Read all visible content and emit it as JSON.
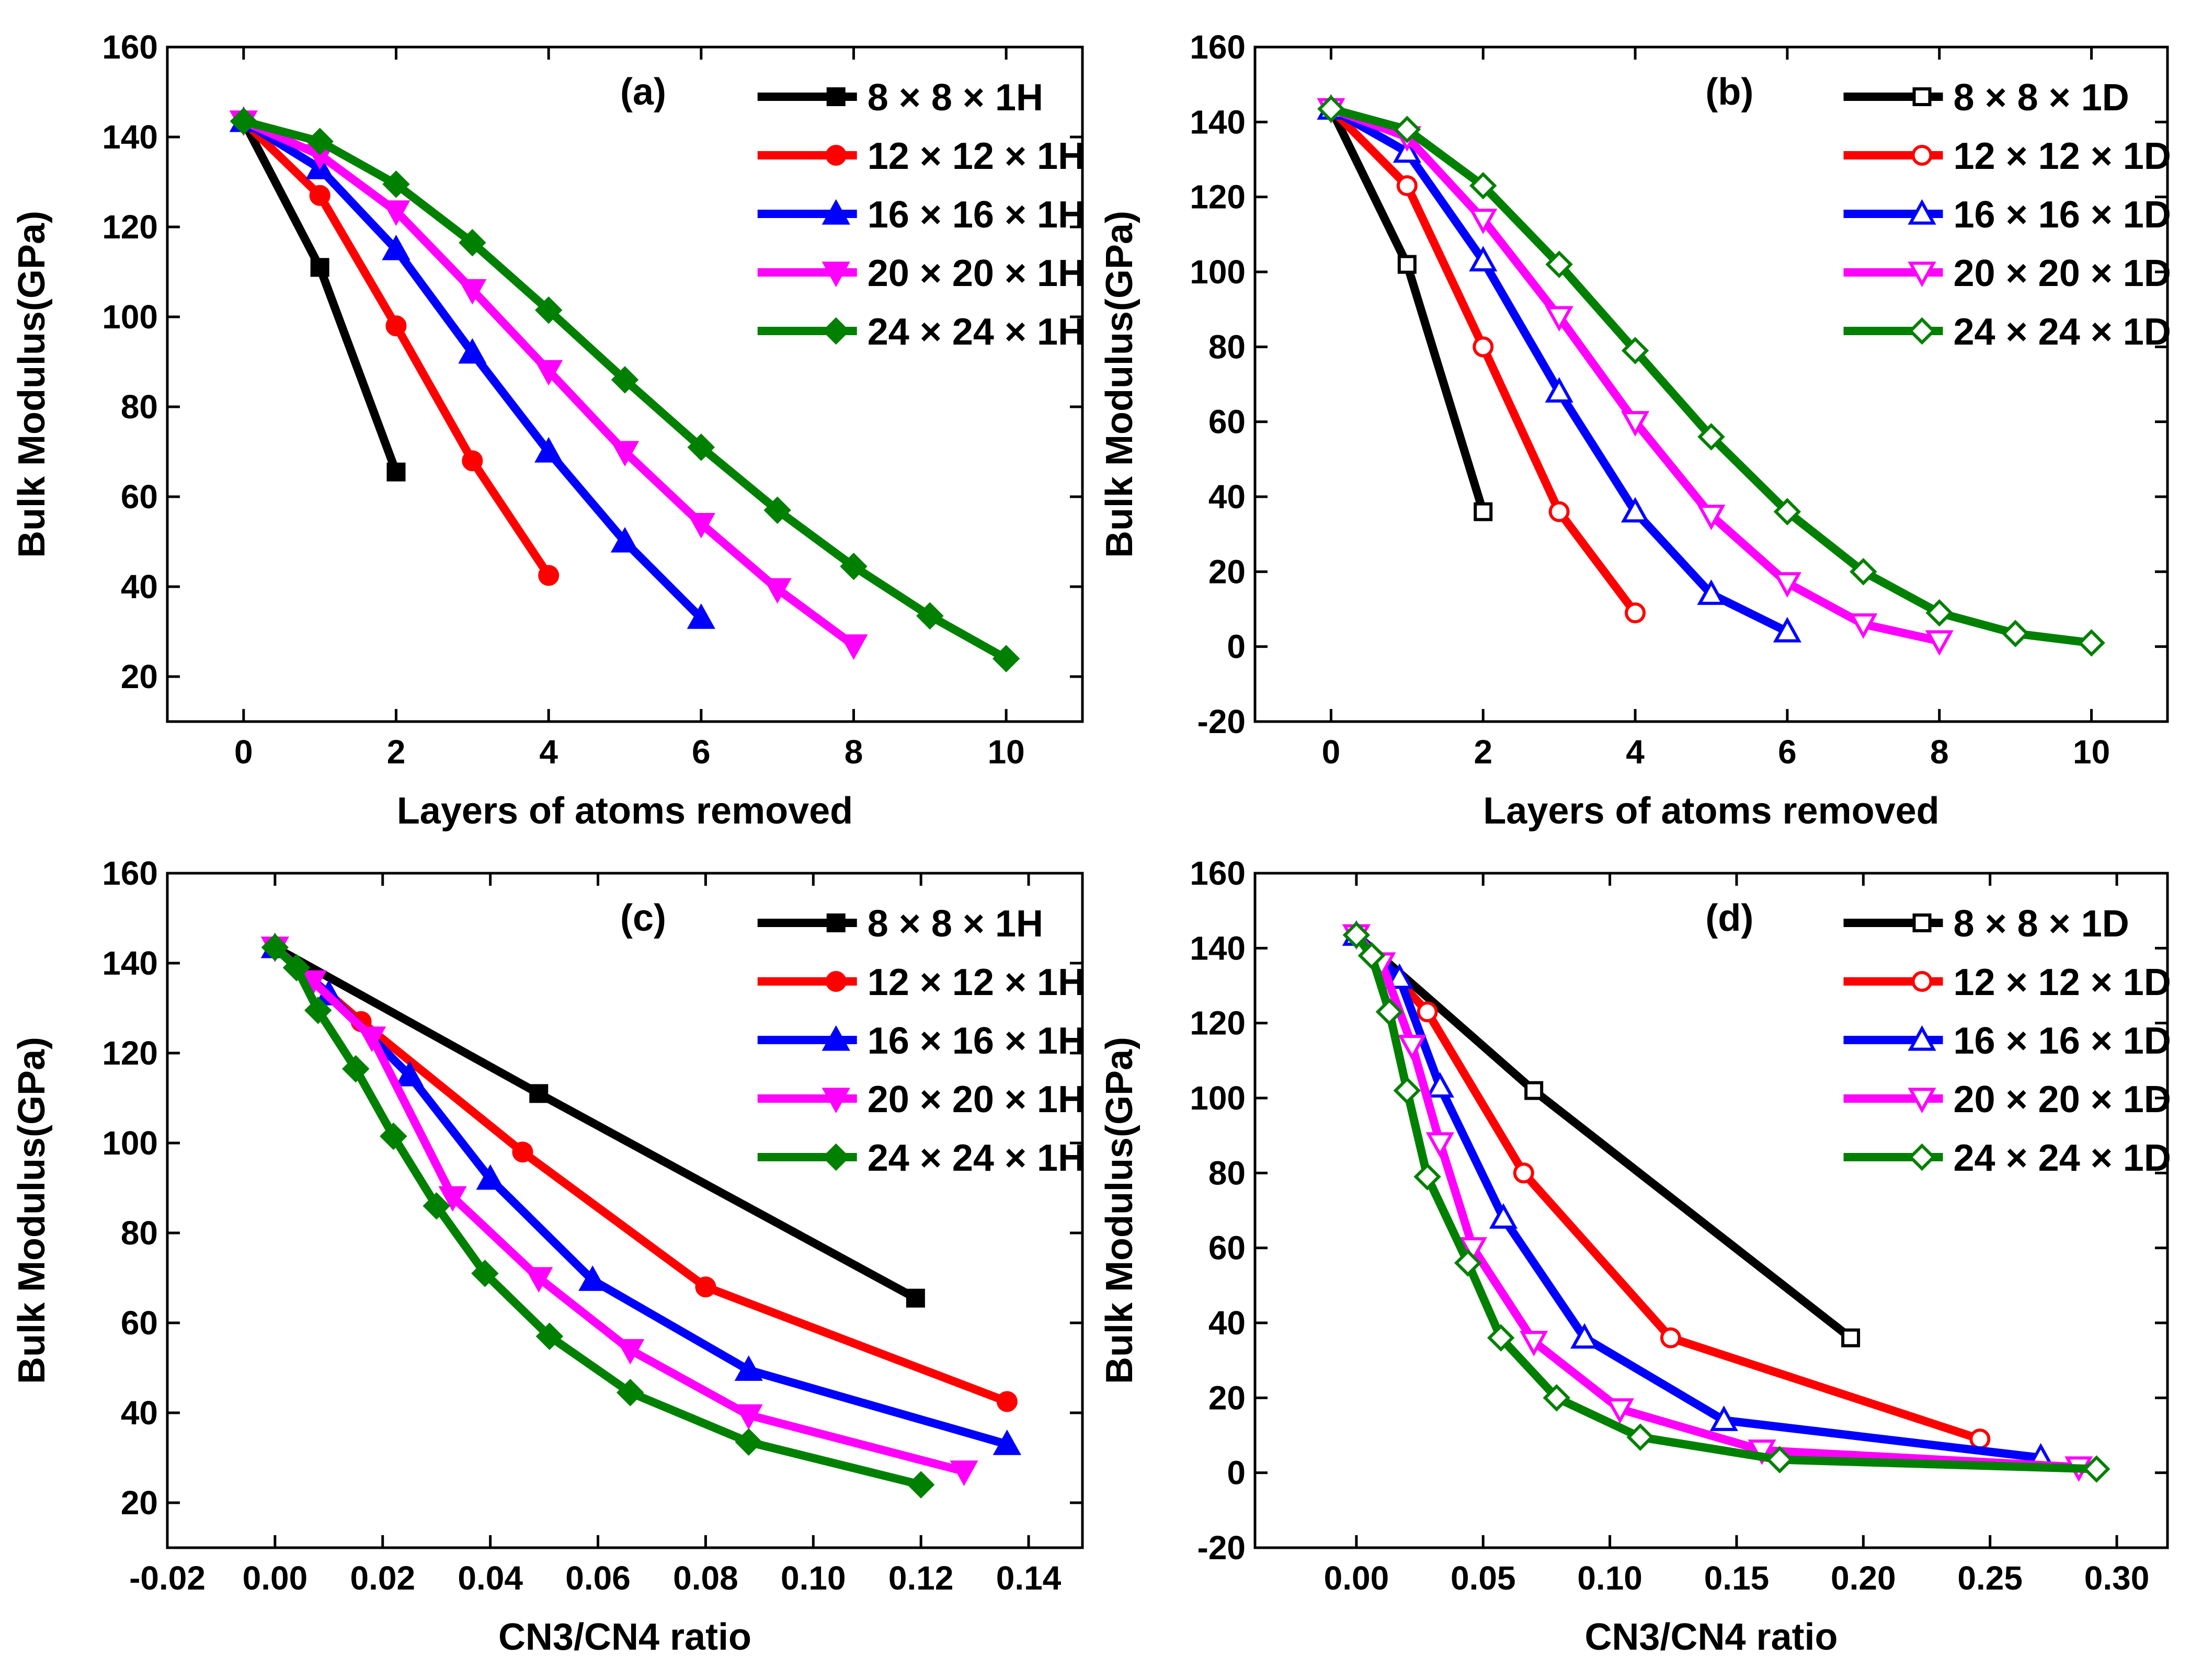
{
  "figure": {
    "panels": [
      "a",
      "b",
      "c",
      "d"
    ]
  },
  "chart_data": [
    {
      "id": "a",
      "type": "line",
      "panel_label": "(a)",
      "xlabel": "Layers of atoms removed",
      "ylabel": "Bulk Modulus(GPa)",
      "xlim": [
        -1,
        11
      ],
      "ylim": [
        10,
        160
      ],
      "xticks": [
        0,
        2,
        4,
        6,
        8,
        10
      ],
      "xtick_labels": [
        "0",
        "2",
        "4",
        "6",
        "8",
        "10"
      ],
      "yticks": [
        20,
        40,
        60,
        80,
        100,
        120,
        140,
        160
      ],
      "ytick_labels": [
        "20",
        "40",
        "60",
        "80",
        "100",
        "120",
        "140",
        "160"
      ],
      "legend_position": "top-right",
      "series": [
        {
          "name": "8 × 8 × 1H",
          "color": "#000000",
          "marker": "square",
          "filled": true,
          "x": [
            0,
            1,
            2
          ],
          "y": [
            143.5,
            111,
            65.5
          ]
        },
        {
          "name": "12 × 12 × 1H",
          "color": "#ff0000",
          "marker": "circle",
          "filled": true,
          "x": [
            0,
            1,
            2,
            3,
            4
          ],
          "y": [
            143.5,
            127,
            98,
            68,
            42.5
          ]
        },
        {
          "name": "16 × 16 × 1H",
          "color": "#0000ff",
          "marker": "triangle-up",
          "filled": true,
          "x": [
            0,
            1,
            2,
            3,
            4,
            5,
            6
          ],
          "y": [
            143.5,
            133,
            115,
            92,
            70,
            50,
            33
          ]
        },
        {
          "name": "20 × 20 × 1H",
          "color": "#ff00ff",
          "marker": "triangle-down",
          "filled": true,
          "x": [
            0,
            1,
            2,
            3,
            4,
            5,
            6,
            7,
            8
          ],
          "y": [
            143.5,
            136,
            123.5,
            106,
            88,
            70,
            54,
            39.5,
            27
          ]
        },
        {
          "name": "24 × 24 × 1H",
          "color": "#008000",
          "marker": "diamond",
          "filled": true,
          "x": [
            0,
            1,
            2,
            3,
            4,
            5,
            6,
            7,
            8,
            9,
            10
          ],
          "y": [
            143.5,
            139,
            129.5,
            116.5,
            101.5,
            86,
            71,
            57,
            44.5,
            33.5,
            24
          ]
        }
      ]
    },
    {
      "id": "b",
      "type": "line",
      "panel_label": "(b)",
      "xlabel": "Layers of atoms removed",
      "ylabel": "Bulk Modulus(GPa)",
      "xlim": [
        -1,
        11
      ],
      "ylim": [
        -20,
        160
      ],
      "xticks": [
        0,
        2,
        4,
        6,
        8,
        10
      ],
      "xtick_labels": [
        "0",
        "2",
        "4",
        "6",
        "8",
        "10"
      ],
      "yticks": [
        -20,
        0,
        20,
        40,
        60,
        80,
        100,
        120,
        140,
        160
      ],
      "ytick_labels": [
        "-20",
        "0",
        "20",
        "40",
        "60",
        "80",
        "100",
        "120",
        "140",
        "160"
      ],
      "legend_position": "top-right",
      "series": [
        {
          "name": "8 × 8 × 1D",
          "color": "#000000",
          "marker": "square",
          "filled": false,
          "x": [
            0,
            1,
            2
          ],
          "y": [
            143.5,
            102,
            36
          ]
        },
        {
          "name": "12 × 12 × 1D",
          "color": "#ff0000",
          "marker": "circle",
          "filled": false,
          "x": [
            0,
            1,
            2,
            3,
            4
          ],
          "y": [
            143.5,
            123,
            80,
            36,
            9
          ]
        },
        {
          "name": "16 × 16 × 1D",
          "color": "#0000ff",
          "marker": "triangle-up",
          "filled": false,
          "x": [
            0,
            1,
            2,
            3,
            4,
            5,
            6
          ],
          "y": [
            143.5,
            132,
            103,
            68,
            36,
            14,
            4
          ]
        },
        {
          "name": "20 × 20 × 1D",
          "color": "#ff00ff",
          "marker": "triangle-down",
          "filled": false,
          "x": [
            0,
            1,
            2,
            3,
            4,
            5,
            6,
            7,
            8
          ],
          "y": [
            143.5,
            136,
            114,
            88,
            60,
            35,
            17,
            6,
            1.5
          ]
        },
        {
          "name": "24 × 24 × 1D",
          "color": "#008000",
          "marker": "diamond",
          "filled": false,
          "x": [
            0,
            1,
            2,
            3,
            4,
            5,
            6,
            7,
            8,
            9,
            10
          ],
          "y": [
            143.5,
            138,
            123,
            102,
            79,
            56,
            36,
            20,
            9,
            3.5,
            1
          ]
        }
      ]
    },
    {
      "id": "c",
      "type": "line",
      "panel_label": "(c)",
      "xlabel": "CN3/CN4 ratio",
      "ylabel": "Bulk Modulus(GPa)",
      "xlim": [
        -0.02,
        0.15
      ],
      "ylim": [
        10,
        160
      ],
      "xticks": [
        -0.02,
        0.0,
        0.02,
        0.04,
        0.06,
        0.08,
        0.1,
        0.12,
        0.14
      ],
      "xtick_labels": [
        "-0.02",
        "0.00",
        "0.02",
        "0.04",
        "0.06",
        "0.08",
        "0.10",
        "0.12",
        "0.14"
      ],
      "yticks": [
        20,
        40,
        60,
        80,
        100,
        120,
        140,
        160
      ],
      "ytick_labels": [
        "20",
        "40",
        "60",
        "80",
        "100",
        "120",
        "140",
        "160"
      ],
      "legend_position": "top-right",
      "series": [
        {
          "name": "8 × 8 × 1H",
          "color": "#000000",
          "marker": "square",
          "filled": true,
          "x": [
            0,
            0.049,
            0.119
          ],
          "y": [
            143.5,
            111,
            65.5
          ]
        },
        {
          "name": "12 × 12 × 1H",
          "color": "#ff0000",
          "marker": "circle",
          "filled": true,
          "x": [
            0,
            0.016,
            0.046,
            0.08,
            0.136
          ],
          "y": [
            143.5,
            127,
            98,
            68,
            42.5
          ]
        },
        {
          "name": "16 × 16 × 1H",
          "color": "#0000ff",
          "marker": "triangle-up",
          "filled": true,
          "x": [
            0,
            0.01,
            0.025,
            0.04,
            0.059,
            0.088,
            0.136
          ],
          "y": [
            143.5,
            133,
            115,
            92,
            69.5,
            49.5,
            33
          ]
        },
        {
          "name": "20 × 20 × 1H",
          "color": "#ff00ff",
          "marker": "triangle-down",
          "filled": true,
          "x": [
            0,
            0.007,
            0.018,
            0.033,
            0.049,
            0.066,
            0.088,
            0.128
          ],
          "y": [
            143.5,
            136,
            123.5,
            88,
            70,
            54,
            39.5,
            27
          ]
        },
        {
          "name": "24 × 24 × 1H",
          "color": "#008000",
          "marker": "diamond",
          "filled": true,
          "x": [
            0,
            0.004,
            0.008,
            0.015,
            0.022,
            0.03,
            0.039,
            0.051,
            0.066,
            0.088,
            0.12
          ],
          "y": [
            143.5,
            139,
            129.5,
            116.5,
            101.5,
            86,
            71,
            57,
            44.5,
            33.5,
            24
          ]
        }
      ]
    },
    {
      "id": "d",
      "type": "line",
      "panel_label": "(d)",
      "xlabel": "CN3/CN4 ratio",
      "ylabel": "Bulk Modulus(GPa)",
      "xlim": [
        -0.04,
        0.32
      ],
      "ylim": [
        -20,
        160
      ],
      "xticks": [
        0.0,
        0.05,
        0.1,
        0.15,
        0.2,
        0.25,
        0.3
      ],
      "xtick_labels": [
        "0.00",
        "0.05",
        "0.10",
        "0.15",
        "0.20",
        "0.25",
        "0.30"
      ],
      "yticks": [
        -20,
        0,
        20,
        40,
        60,
        80,
        100,
        120,
        140,
        160
      ],
      "ytick_labels": [
        "-20",
        "0",
        "20",
        "40",
        "60",
        "80",
        "100",
        "120",
        "140",
        "160"
      ],
      "legend_position": "top-right",
      "series": [
        {
          "name": "8 × 8 × 1D",
          "color": "#000000",
          "marker": "square",
          "filled": false,
          "x": [
            0,
            0.07,
            0.195
          ],
          "y": [
            143.5,
            102,
            36
          ]
        },
        {
          "name": "12 × 12 × 1D",
          "color": "#ff0000",
          "marker": "circle",
          "filled": false,
          "x": [
            0,
            0.028,
            0.066,
            0.124,
            0.246
          ],
          "y": [
            143.5,
            123,
            80,
            36,
            9
          ]
        },
        {
          "name": "16 × 16 × 1D",
          "color": "#0000ff",
          "marker": "triangle-up",
          "filled": false,
          "x": [
            0,
            0.017,
            0.033,
            0.058,
            0.09,
            0.145,
            0.27
          ],
          "y": [
            143.5,
            132,
            103,
            68,
            36,
            14,
            4
          ]
        },
        {
          "name": "20 × 20 × 1D",
          "color": "#ff00ff",
          "marker": "triangle-down",
          "filled": false,
          "x": [
            0,
            0.01,
            0.022,
            0.033,
            0.046,
            0.07,
            0.104,
            0.16,
            0.285
          ],
          "y": [
            143.5,
            136,
            114,
            88,
            60,
            35,
            17,
            6,
            1.5
          ]
        },
        {
          "name": "24 × 24 × 1D",
          "color": "#008000",
          "marker": "diamond",
          "filled": false,
          "x": [
            0,
            0.006,
            0.013,
            0.02,
            0.028,
            0.044,
            0.057,
            0.079,
            0.112,
            0.167,
            0.292
          ],
          "y": [
            143.5,
            138,
            123,
            102,
            79,
            56,
            36,
            20,
            9.5,
            3.5,
            1
          ]
        }
      ]
    }
  ]
}
